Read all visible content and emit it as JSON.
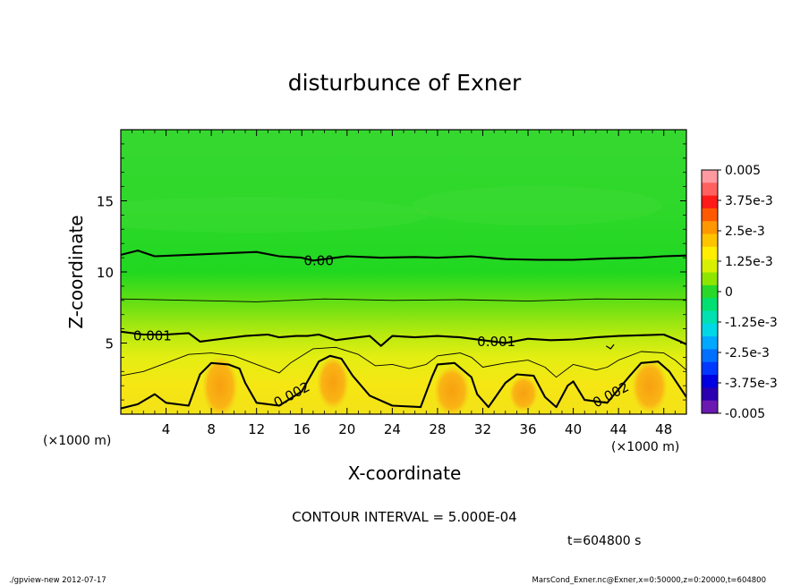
{
  "chart_data": {
    "type": "heatmap",
    "title": "disturbunce of Exner",
    "xlabel": "X-coordinate",
    "ylabel": "Z-coordinate",
    "x_unit_left": "(×1000 m)",
    "x_unit_right": "(×1000 m)",
    "xlim": [
      0,
      50
    ],
    "ylim": [
      0,
      20
    ],
    "x_ticks": [
      4,
      8,
      12,
      16,
      20,
      24,
      28,
      32,
      36,
      40,
      44,
      48
    ],
    "y_ticks": [
      5,
      10,
      15
    ],
    "contour_interval": "CONTOUR INTERVAL = 5.000E-04",
    "time_label": "t=604800 s",
    "colorbar": {
      "labels": [
        "0.005",
        "3.75e-3",
        "2.5e-3",
        "1.25e-3",
        "0",
        "-1.25e-3",
        "-2.5e-3",
        "-3.75e-3",
        "-0.005"
      ],
      "colors": [
        "#ff9aa0",
        "#ff6060",
        "#ff1a1a",
        "#ff5a00",
        "#ff9800",
        "#ffc400",
        "#ffee00",
        "#d8f000",
        "#8ee600",
        "#29d92a",
        "#00e070",
        "#00e0b0",
        "#00d8e8",
        "#00a8ff",
        "#0070ff",
        "#0038ff",
        "#0000e0",
        "#2a00b0",
        "#6a1ab0"
      ]
    },
    "contour_labels": [
      {
        "text": "0.00",
        "x": 17.5,
        "y": 10.8
      },
      {
        "text": "0.001",
        "x": 2.8,
        "y": 5.5
      },
      {
        "text": "0.001",
        "x": 33.2,
        "y": 5.1
      },
      {
        "text": "0.002",
        "x": 15.3,
        "y": 1.4
      },
      {
        "text": "0.002",
        "x": 43.5,
        "y": 1.4
      }
    ],
    "contour_lines": [
      {
        "level": "0.0005",
        "weight": "thin",
        "points": [
          [
            0,
            8.1
          ],
          [
            6,
            8
          ],
          [
            12,
            7.9
          ],
          [
            18,
            8.1
          ],
          [
            24,
            8
          ],
          [
            30,
            8.05
          ],
          [
            36,
            7.95
          ],
          [
            42,
            8.1
          ],
          [
            50,
            8.05
          ]
        ]
      },
      {
        "level": "0.0",
        "weight": "thick",
        "points": [
          [
            0,
            11.2
          ],
          [
            1.5,
            11.5
          ],
          [
            3,
            11.1
          ],
          [
            6,
            11.2
          ],
          [
            9,
            11.3
          ],
          [
            12,
            11.4
          ],
          [
            14,
            11.1
          ],
          [
            16,
            11
          ],
          [
            17,
            10.8
          ],
          [
            20,
            11.1
          ],
          [
            23,
            11
          ],
          [
            26,
            11.05
          ],
          [
            28,
            11
          ],
          [
            31,
            11.1
          ],
          [
            34,
            10.9
          ],
          [
            37,
            10.85
          ],
          [
            40,
            10.85
          ],
          [
            43,
            10.95
          ],
          [
            46,
            11
          ],
          [
            48,
            11.1
          ],
          [
            50,
            11.15
          ]
        ]
      },
      {
        "level": "0.001",
        "weight": "thick",
        "points": [
          [
            0,
            5.8
          ],
          [
            2,
            5.6
          ],
          [
            4,
            5.6
          ],
          [
            6,
            5.7
          ],
          [
            7,
            5.1
          ],
          [
            9,
            5.3
          ],
          [
            11,
            5.5
          ],
          [
            13,
            5.6
          ],
          [
            14,
            5.4
          ],
          [
            15.5,
            5.5
          ],
          [
            16.5,
            5.5
          ],
          [
            17.5,
            5.6
          ],
          [
            19,
            5.2
          ],
          [
            21,
            5.4
          ],
          [
            22,
            5.5
          ],
          [
            23,
            4.8
          ],
          [
            24,
            5.5
          ],
          [
            26,
            5.4
          ],
          [
            28,
            5.5
          ],
          [
            30,
            5.4
          ],
          [
            32,
            5.2
          ],
          [
            34,
            5
          ],
          [
            36,
            5.3
          ],
          [
            38,
            5.2
          ],
          [
            40,
            5.25
          ],
          [
            42,
            5.4
          ],
          [
            44,
            5.5
          ],
          [
            46,
            5.55
          ],
          [
            48,
            5.6
          ],
          [
            49.5,
            5.1
          ],
          [
            50,
            4.9
          ]
        ]
      },
      {
        "level": "0.0015",
        "weight": "thin",
        "points": [
          [
            0,
            2.7
          ],
          [
            2,
            3
          ],
          [
            4,
            3.6
          ],
          [
            6,
            4.2
          ],
          [
            8,
            4.3
          ],
          [
            10,
            4.1
          ],
          [
            12,
            3.5
          ],
          [
            14,
            2.9
          ],
          [
            15,
            3.6
          ],
          [
            17,
            4.6
          ],
          [
            19,
            4.7
          ],
          [
            21,
            4.2
          ],
          [
            22.5,
            3.4
          ],
          [
            24,
            3.5
          ],
          [
            25.5,
            3.2
          ],
          [
            27,
            3.5
          ],
          [
            28,
            4.1
          ],
          [
            30,
            4.3
          ],
          [
            31,
            4
          ],
          [
            32,
            3.3
          ],
          [
            34,
            3.6
          ],
          [
            36,
            3.8
          ],
          [
            37.5,
            3.3
          ],
          [
            38.5,
            2.6
          ],
          [
            40,
            3.5
          ],
          [
            42,
            3.1
          ],
          [
            43,
            3.3
          ],
          [
            44,
            3.8
          ],
          [
            46,
            4.4
          ],
          [
            48,
            4.3
          ],
          [
            49,
            3.8
          ],
          [
            50,
            3.1
          ]
        ]
      },
      {
        "level": "0.002",
        "weight": "thick",
        "points": [
          [
            0,
            0.4
          ],
          [
            1.5,
            0.7
          ],
          [
            3,
            1.4
          ],
          [
            4,
            0.8
          ],
          [
            6,
            0.6
          ],
          [
            7,
            2.8
          ],
          [
            8,
            3.6
          ],
          [
            9.5,
            3.5
          ],
          [
            10.5,
            3.2
          ],
          [
            11,
            2.2
          ],
          [
            12,
            0.8
          ],
          [
            14,
            0.6
          ],
          [
            16,
            1.6
          ],
          [
            17.5,
            3.7
          ],
          [
            18.5,
            4.1
          ],
          [
            19.5,
            3.9
          ],
          [
            20.5,
            2.7
          ],
          [
            22,
            1.3
          ],
          [
            24,
            0.6
          ],
          [
            26.5,
            0.5
          ],
          [
            27.5,
            2.6
          ],
          [
            28,
            3.5
          ],
          [
            29.5,
            3.6
          ],
          [
            31,
            2.6
          ],
          [
            31.5,
            1.4
          ],
          [
            32.5,
            0.5
          ],
          [
            34,
            2.2
          ],
          [
            35,
            2.8
          ],
          [
            36.5,
            2.7
          ],
          [
            37.5,
            1.2
          ],
          [
            38.5,
            0.5
          ],
          [
            39.5,
            2
          ],
          [
            40,
            2.3
          ],
          [
            41,
            1
          ],
          [
            43,
            0.8
          ],
          [
            45,
            2.7
          ],
          [
            46,
            3.6
          ],
          [
            47.5,
            3.7
          ],
          [
            48.5,
            3
          ],
          [
            49.5,
            1.8
          ],
          [
            50,
            1.2
          ]
        ]
      }
    ],
    "small_contour": [
      [
        42.9,
        4.8
      ],
      [
        43.3,
        4.6
      ],
      [
        43.6,
        4.9
      ]
    ],
    "footer_left": "./gpview-new   2012-07-17",
    "footer_right": "MarsCond_Exner.nc@Exner,x=0:50000,z=0:20000,t=604800"
  }
}
